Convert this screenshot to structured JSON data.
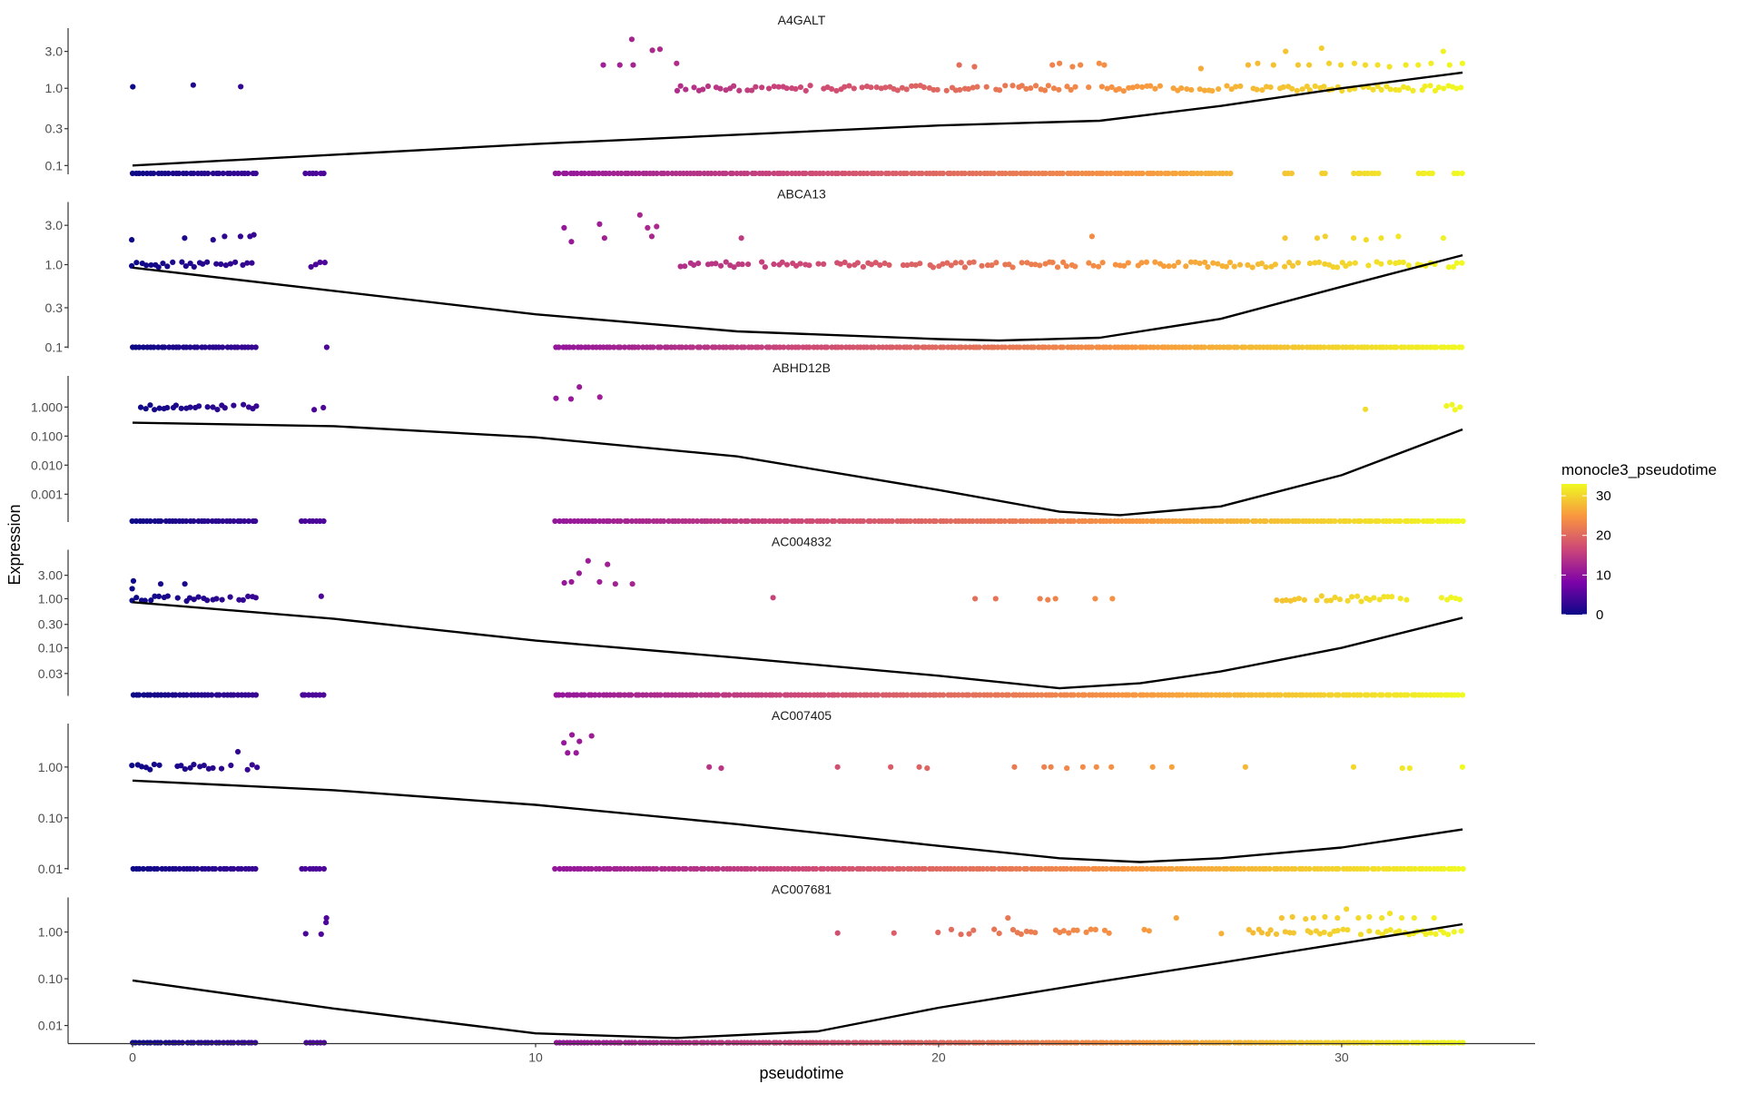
{
  "chart_data": {
    "type": "scatter",
    "xlabel": "pseudotime",
    "ylabel": "Expression",
    "xlim": [
      -1.6,
      34.8
    ],
    "x_ticks": [
      0,
      10,
      20,
      30
    ],
    "y_scale": "log10",
    "legend": {
      "title": "monocle3_pseudotime",
      "placement": "right",
      "range": [
        0,
        33
      ],
      "ticks": [
        0,
        10,
        20,
        30
      ],
      "colormap": "plasma",
      "colors": [
        "#0d0887",
        "#7e03a8",
        "#cc4778",
        "#f89540",
        "#f0f921"
      ]
    },
    "trend_color": "#000000",
    "panels": [
      {
        "gene": "A4GALT",
        "ylim": [
          0.077,
          5.1
        ],
        "ticks": [
          {
            "v": 3.0,
            "label": "3.0"
          },
          {
            "v": 1.0,
            "label": "1.0"
          },
          {
            "v": 0.3,
            "label": "0.3"
          },
          {
            "v": 0.1,
            "label": "0.1"
          }
        ],
        "trend": [
          [
            0,
            0.1
          ],
          [
            10,
            0.19
          ],
          [
            20,
            0.33
          ],
          [
            24,
            0.38
          ],
          [
            27,
            0.59
          ],
          [
            30,
            1.0
          ],
          [
            33,
            1.6
          ]
        ],
        "zero_ranges": [
          [
            0,
            3.1
          ],
          [
            4.3,
            4.8
          ],
          [
            10.5,
            27.3
          ],
          [
            28.6,
            28.8
          ],
          [
            29.5,
            29.6
          ],
          [
            30.3,
            31.0
          ],
          [
            31.9,
            32.3
          ],
          [
            32.8,
            33.0
          ]
        ],
        "one_ranges": [
          [
            0,
            0.05
          ],
          [
            4.7,
            4.85
          ],
          [
            13.5,
            33.0
          ]
        ],
        "points": [
          [
            1.5,
            1.1
          ],
          [
            2.7,
            1.05
          ],
          [
            11.7,
            2.0
          ],
          [
            12.4,
            4.3
          ],
          [
            12.1,
            2.0
          ],
          [
            12.4,
            2.0
          ],
          [
            12.9,
            3.1
          ],
          [
            13.1,
            3.2
          ],
          [
            13.5,
            2.1
          ],
          [
            20.5,
            2.0
          ],
          [
            20.9,
            1.9
          ],
          [
            22.8,
            2.0
          ],
          [
            23.0,
            2.1
          ],
          [
            23.3,
            1.9
          ],
          [
            23.5,
            2.0
          ],
          [
            24.0,
            2.1
          ],
          [
            24.1,
            2.0
          ],
          [
            26.5,
            1.8
          ],
          [
            27.7,
            2.0
          ],
          [
            27.9,
            2.1
          ],
          [
            28.3,
            2.0
          ],
          [
            28.6,
            3.0
          ],
          [
            28.9,
            2.0
          ],
          [
            29.2,
            2.0
          ],
          [
            29.5,
            3.3
          ],
          [
            29.7,
            2.1
          ],
          [
            30.0,
            2.0
          ],
          [
            30.3,
            2.1
          ],
          [
            30.6,
            2.0
          ],
          [
            30.9,
            2.0
          ],
          [
            31.2,
            1.9
          ],
          [
            31.6,
            2.0
          ],
          [
            31.9,
            2.0
          ],
          [
            32.2,
            2.1
          ],
          [
            32.5,
            3.0
          ],
          [
            32.7,
            2.0
          ],
          [
            33.0,
            2.1
          ]
        ]
      },
      {
        "gene": "ABCA13",
        "ylim": [
          0.097,
          4.94
        ],
        "ticks": [
          {
            "v": 3.0,
            "label": "3.0"
          },
          {
            "v": 1.0,
            "label": "1.0"
          },
          {
            "v": 0.3,
            "label": "0.3"
          },
          {
            "v": 0.1,
            "label": "0.1"
          }
        ],
        "trend": [
          [
            0,
            0.92
          ],
          [
            5,
            0.48
          ],
          [
            10,
            0.25
          ],
          [
            15,
            0.155
          ],
          [
            20,
            0.125
          ],
          [
            21.5,
            0.12
          ],
          [
            24,
            0.13
          ],
          [
            27,
            0.22
          ],
          [
            30,
            0.54
          ],
          [
            33,
            1.3
          ]
        ],
        "zero_ranges": [
          [
            0,
            3.1
          ],
          [
            4.8,
            4.85
          ],
          [
            10.5,
            33.0
          ]
        ],
        "one_ranges": [
          [
            0,
            3.1
          ],
          [
            4.2,
            4.8
          ],
          [
            13.5,
            33.0
          ]
        ],
        "points": [
          [
            0,
            2.0
          ],
          [
            1.3,
            2.1
          ],
          [
            2.0,
            2.0
          ],
          [
            2.3,
            2.2
          ],
          [
            2.7,
            2.2
          ],
          [
            2.9,
            2.2
          ],
          [
            3.0,
            2.3
          ],
          [
            10.7,
            2.8
          ],
          [
            10.9,
            1.9
          ],
          [
            11.6,
            3.1
          ],
          [
            11.7,
            2.1
          ],
          [
            12.6,
            4.0
          ],
          [
            12.8,
            2.8
          ],
          [
            13.0,
            2.9
          ],
          [
            12.9,
            2.2
          ],
          [
            15.1,
            2.1
          ],
          [
            23.8,
            2.2
          ],
          [
            28.6,
            2.1
          ],
          [
            29.4,
            2.1
          ],
          [
            29.6,
            2.2
          ],
          [
            30.3,
            2.1
          ],
          [
            30.6,
            2.0
          ],
          [
            31.0,
            2.1
          ],
          [
            31.4,
            2.2
          ],
          [
            32.5,
            2.1
          ]
        ]
      },
      {
        "gene": "ABHD12B",
        "ylim": [
          0.00011,
          7.7
        ],
        "ticks": [
          {
            "v": 1.0,
            "label": "1.000"
          },
          {
            "v": 0.1,
            "label": "0.100"
          },
          {
            "v": 0.01,
            "label": "0.010"
          },
          {
            "v": 0.001,
            "label": "0.001"
          }
        ],
        "trend": [
          [
            0,
            0.29
          ],
          [
            5,
            0.22
          ],
          [
            10,
            0.091
          ],
          [
            15,
            0.02
          ],
          [
            20,
            0.0014
          ],
          [
            23,
            0.00025
          ],
          [
            24.5,
            0.00019
          ],
          [
            27,
            0.00038
          ],
          [
            30,
            0.0045
          ],
          [
            33,
            0.17
          ]
        ],
        "zero_ranges": [
          [
            0,
            3.1
          ],
          [
            4.2,
            4.8
          ],
          [
            10.5,
            33.0
          ]
        ],
        "one_ranges": [
          [
            0,
            3.1
          ],
          [
            4.4,
            4.8
          ],
          [
            30.6,
            30.65
          ],
          [
            32.5,
            33.0
          ]
        ],
        "points": [
          [
            10.5,
            2.0
          ],
          [
            10.9,
            1.9
          ],
          [
            11.1,
            4.9
          ],
          [
            11.6,
            2.2
          ]
        ]
      },
      {
        "gene": "AC004832",
        "ylim": [
          0.0105,
          7.7
        ],
        "ticks": [
          {
            "v": 3.0,
            "label": "3.00"
          },
          {
            "v": 1.0,
            "label": "1.00"
          },
          {
            "v": 0.3,
            "label": "0.30"
          },
          {
            "v": 0.1,
            "label": "0.10"
          },
          {
            "v": 0.03,
            "label": "0.03"
          }
        ],
        "trend": [
          [
            0,
            0.85
          ],
          [
            5,
            0.39
          ],
          [
            10,
            0.14
          ],
          [
            15,
            0.063
          ],
          [
            20,
            0.027
          ],
          [
            23,
            0.015
          ],
          [
            25,
            0.019
          ],
          [
            27,
            0.033
          ],
          [
            30,
            0.1
          ],
          [
            33,
            0.41
          ]
        ],
        "zero_ranges": [
          [
            0,
            3.1
          ],
          [
            4.2,
            4.8
          ],
          [
            10.5,
            33.0
          ]
        ],
        "one_ranges": [
          [
            0,
            3.1
          ],
          [
            4.7,
            4.8
          ],
          [
            28.4,
            31.6
          ],
          [
            32.5,
            33.0
          ]
        ],
        "points": [
          [
            0,
            2.3
          ],
          [
            0,
            1.6
          ],
          [
            0.7,
            2.0
          ],
          [
            1.3,
            2.0
          ],
          [
            10.7,
            2.1
          ],
          [
            10.9,
            2.2
          ],
          [
            11.1,
            3.3
          ],
          [
            11.3,
            5.9
          ],
          [
            11.8,
            5.0
          ],
          [
            11.6,
            2.2
          ],
          [
            12.0,
            2.0
          ],
          [
            12.4,
            2.0
          ],
          [
            15.9,
            1.05
          ],
          [
            20.9,
            1.0
          ],
          [
            21.4,
            1.0
          ],
          [
            22.5,
            1.0
          ],
          [
            22.7,
            0.95
          ],
          [
            22.9,
            1.0
          ],
          [
            23.9,
            1.0
          ],
          [
            24.3,
            1.0
          ]
        ]
      },
      {
        "gene": "AC007405",
        "ylim": [
          0.0095,
          5.6
        ],
        "ticks": [
          {
            "v": 1.0,
            "label": "1.00"
          },
          {
            "v": 0.1,
            "label": "0.10"
          },
          {
            "v": 0.01,
            "label": "0.01"
          }
        ],
        "trend": [
          [
            0,
            0.54
          ],
          [
            5,
            0.35
          ],
          [
            10,
            0.18
          ],
          [
            15,
            0.075
          ],
          [
            20,
            0.028
          ],
          [
            23,
            0.016
          ],
          [
            25,
            0.0135
          ],
          [
            27,
            0.016
          ],
          [
            30,
            0.026
          ],
          [
            33,
            0.059
          ]
        ],
        "zero_ranges": [
          [
            0,
            3.1
          ],
          [
            4.2,
            4.8
          ],
          [
            10.5,
            33.0
          ]
        ],
        "one_ranges": [
          [
            0,
            3.1
          ],
          [
            4.7,
            4.8
          ]
        ],
        "points": [
          [
            2.6,
            2.0
          ],
          [
            10.7,
            3.0
          ],
          [
            10.9,
            4.3
          ],
          [
            11.1,
            3.2
          ],
          [
            10.8,
            1.9
          ],
          [
            11.0,
            1.9
          ],
          [
            11.4,
            4.1
          ],
          [
            14.3,
            1.0
          ],
          [
            14.6,
            0.95
          ],
          [
            17.5,
            1.0
          ],
          [
            18.8,
            1.0
          ],
          [
            19.5,
            1.0
          ],
          [
            19.7,
            0.95
          ],
          [
            21.9,
            1.0
          ],
          [
            22.6,
            1.0
          ],
          [
            22.8,
            1.0
          ],
          [
            23.2,
            0.95
          ],
          [
            23.6,
            1.0
          ],
          [
            23.9,
            1.0
          ],
          [
            24.3,
            1.0
          ],
          [
            25.3,
            1.0
          ],
          [
            25.8,
            1.0
          ],
          [
            27.6,
            1.0
          ],
          [
            30.3,
            1.0
          ],
          [
            31.5,
            0.95
          ],
          [
            31.7,
            0.95
          ],
          [
            33.0,
            1.0
          ]
        ]
      },
      {
        "gene": "AC007681",
        "ylim": [
          0.0041,
          4.2
        ],
        "ticks": [
          {
            "v": 1.0,
            "label": "1.00"
          },
          {
            "v": 0.1,
            "label": "0.10"
          },
          {
            "v": 0.01,
            "label": "0.01"
          }
        ],
        "trend": [
          [
            0,
            0.092
          ],
          [
            5,
            0.023
          ],
          [
            10,
            0.0068
          ],
          [
            13.5,
            0.0054
          ],
          [
            17,
            0.0075
          ],
          [
            20,
            0.024
          ],
          [
            24,
            0.087
          ],
          [
            27,
            0.22
          ],
          [
            30,
            0.57
          ],
          [
            33,
            1.47
          ]
        ],
        "zero_ranges": [
          [
            0,
            3.1
          ],
          [
            4.3,
            4.8
          ],
          [
            10.5,
            33.0
          ]
        ],
        "one_ranges": [
          [
            4.3,
            4.35
          ],
          [
            4.5,
            4.55
          ],
          [
            4.7,
            4.8
          ],
          [
            20.0,
            20.9
          ],
          [
            21.4,
            22.4
          ],
          [
            22.9,
            24.3
          ],
          [
            25.0,
            25.3
          ],
          [
            27.0,
            27.05
          ],
          [
            27.3,
            27.35
          ],
          [
            27.6,
            33.0
          ]
        ],
        "points": [
          [
            4.8,
            2.0
          ],
          [
            4.8,
            1.6
          ],
          [
            17.5,
            0.95
          ],
          [
            18.9,
            0.95
          ],
          [
            21.7,
            2.0
          ],
          [
            25.9,
            2.0
          ],
          [
            28.5,
            2.0
          ],
          [
            28.8,
            2.1
          ],
          [
            29.1,
            1.9
          ],
          [
            29.3,
            2.0
          ],
          [
            29.6,
            2.1
          ],
          [
            29.9,
            2.0
          ],
          [
            30.1,
            3.1
          ],
          [
            30.4,
            2.0
          ],
          [
            30.7,
            2.1
          ],
          [
            31.0,
            2.0
          ],
          [
            31.2,
            2.5
          ],
          [
            31.5,
            2.0
          ],
          [
            31.8,
            2.0
          ],
          [
            32.3,
            2.0
          ]
        ]
      }
    ]
  }
}
